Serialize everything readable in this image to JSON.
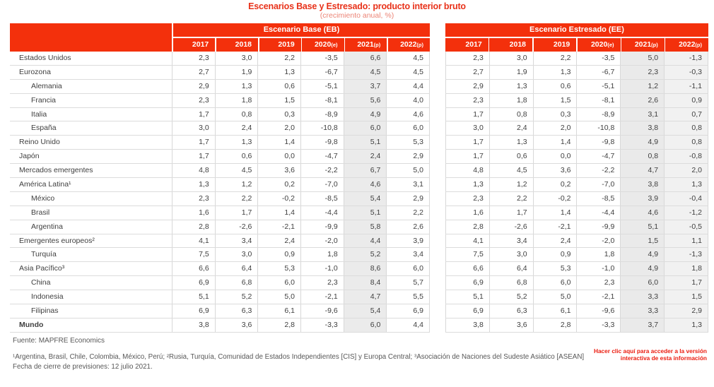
{
  "chart_data": {
    "type": "table",
    "title": "Escenarios Base y Estresado: producto interior bruto",
    "subtitle": "(crecimiento anual, %)",
    "column_groups": [
      "Escenario Base (EB)",
      "Escenario Estresado (EE)"
    ],
    "columns": [
      "2017",
      "2018",
      "2019",
      "2020(e)",
      "2021(p)",
      "2022(p)"
    ],
    "rows": [
      {
        "label": "Estados Unidos",
        "indent": false,
        "bold": false,
        "eb": [
          "2,3",
          "3,0",
          "2,2",
          "-3,5",
          "6,6",
          "4,5"
        ],
        "ee": [
          "2,3",
          "3,0",
          "2,2",
          "-3,5",
          "5,0",
          "-1,3"
        ]
      },
      {
        "label": "Eurozona",
        "indent": false,
        "bold": false,
        "eb": [
          "2,7",
          "1,9",
          "1,3",
          "-6,7",
          "4,5",
          "4,5"
        ],
        "ee": [
          "2,7",
          "1,9",
          "1,3",
          "-6,7",
          "2,3",
          "-0,3"
        ]
      },
      {
        "label": "Alemania",
        "indent": true,
        "bold": false,
        "eb": [
          "2,9",
          "1,3",
          "0,6",
          "-5,1",
          "3,7",
          "4,4"
        ],
        "ee": [
          "2,9",
          "1,3",
          "0,6",
          "-5,1",
          "1,2",
          "-1,1"
        ]
      },
      {
        "label": "Francia",
        "indent": true,
        "bold": false,
        "eb": [
          "2,3",
          "1,8",
          "1,5",
          "-8,1",
          "5,6",
          "4,0"
        ],
        "ee": [
          "2,3",
          "1,8",
          "1,5",
          "-8,1",
          "2,6",
          "0,9"
        ]
      },
      {
        "label": "Italia",
        "indent": true,
        "bold": false,
        "eb": [
          "1,7",
          "0,8",
          "0,3",
          "-8,9",
          "4,9",
          "4,6"
        ],
        "ee": [
          "1,7",
          "0,8",
          "0,3",
          "-8,9",
          "3,1",
          "0,7"
        ]
      },
      {
        "label": "España",
        "indent": true,
        "bold": false,
        "eb": [
          "3,0",
          "2,4",
          "2,0",
          "-10,8",
          "6,0",
          "6,0"
        ],
        "ee": [
          "3,0",
          "2,4",
          "2,0",
          "-10,8",
          "3,8",
          "0,8"
        ]
      },
      {
        "label": "Reino Unido",
        "indent": false,
        "bold": false,
        "eb": [
          "1,7",
          "1,3",
          "1,4",
          "-9,8",
          "5,1",
          "5,3"
        ],
        "ee": [
          "1,7",
          "1,3",
          "1,4",
          "-9,8",
          "4,9",
          "0,8"
        ]
      },
      {
        "label": "Japón",
        "indent": false,
        "bold": false,
        "eb": [
          "1,7",
          "0,6",
          "0,0",
          "-4,7",
          "2,4",
          "2,9"
        ],
        "ee": [
          "1,7",
          "0,6",
          "0,0",
          "-4,7",
          "0,8",
          "-0,8"
        ]
      },
      {
        "label": "Mercados emergentes",
        "indent": false,
        "bold": false,
        "eb": [
          "4,8",
          "4,5",
          "3,6",
          "-2,2",
          "6,7",
          "5,0"
        ],
        "ee": [
          "4,8",
          "4,5",
          "3,6",
          "-2,2",
          "4,7",
          "2,0"
        ]
      },
      {
        "label": "América Latina¹",
        "indent": false,
        "bold": false,
        "eb": [
          "1,3",
          "1,2",
          "0,2",
          "-7,0",
          "4,6",
          "3,1"
        ],
        "ee": [
          "1,3",
          "1,2",
          "0,2",
          "-7,0",
          "3,8",
          "1,3"
        ]
      },
      {
        "label": "México",
        "indent": true,
        "bold": false,
        "eb": [
          "2,3",
          "2,2",
          "-0,2",
          "-8,5",
          "5,4",
          "2,9"
        ],
        "ee": [
          "2,3",
          "2,2",
          "-0,2",
          "-8,5",
          "3,9",
          "-0,4"
        ]
      },
      {
        "label": "Brasil",
        "indent": true,
        "bold": false,
        "eb": [
          "1,6",
          "1,7",
          "1,4",
          "-4,4",
          "5,1",
          "2,2"
        ],
        "ee": [
          "1,6",
          "1,7",
          "1,4",
          "-4,4",
          "4,6",
          "-1,2"
        ]
      },
      {
        "label": "Argentina",
        "indent": true,
        "bold": false,
        "eb": [
          "2,8",
          "-2,6",
          "-2,1",
          "-9,9",
          "5,8",
          "2,6"
        ],
        "ee": [
          "2,8",
          "-2,6",
          "-2,1",
          "-9,9",
          "5,1",
          "-0,5"
        ]
      },
      {
        "label": "Emergentes europeos²",
        "indent": false,
        "bold": false,
        "eb": [
          "4,1",
          "3,4",
          "2,4",
          "-2,0",
          "4,4",
          "3,9"
        ],
        "ee": [
          "4,1",
          "3,4",
          "2,4",
          "-2,0",
          "1,5",
          "1,1"
        ]
      },
      {
        "label": "Turquía",
        "indent": true,
        "bold": false,
        "eb": [
          "7,5",
          "3,0",
          "0,9",
          "1,8",
          "5,2",
          "3,4"
        ],
        "ee": [
          "7,5",
          "3,0",
          "0,9",
          "1,8",
          "4,9",
          "-1,3"
        ]
      },
      {
        "label": "Asia Pacífico³",
        "indent": false,
        "bold": false,
        "eb": [
          "6,6",
          "6,4",
          "5,3",
          "-1,0",
          "8,6",
          "6,0"
        ],
        "ee": [
          "6,6",
          "6,4",
          "5,3",
          "-1,0",
          "4,9",
          "1,8"
        ]
      },
      {
        "label": "China",
        "indent": true,
        "bold": false,
        "eb": [
          "6,9",
          "6,8",
          "6,0",
          "2,3",
          "8,4",
          "5,7"
        ],
        "ee": [
          "6,9",
          "6,8",
          "6,0",
          "2,3",
          "6,0",
          "1,7"
        ]
      },
      {
        "label": "Indonesia",
        "indent": true,
        "bold": false,
        "eb": [
          "5,1",
          "5,2",
          "5,0",
          "-2,1",
          "4,7",
          "5,5"
        ],
        "ee": [
          "5,1",
          "5,2",
          "5,0",
          "-2,1",
          "3,3",
          "1,5"
        ]
      },
      {
        "label": "Filipinas",
        "indent": true,
        "bold": false,
        "eb": [
          "6,9",
          "6,3",
          "6,1",
          "-9,6",
          "5,4",
          "6,9"
        ],
        "ee": [
          "6,9",
          "6,3",
          "6,1",
          "-9,6",
          "3,3",
          "2,9"
        ]
      },
      {
        "label": "Mundo",
        "indent": false,
        "bold": true,
        "eb": [
          "3,8",
          "3,6",
          "2,8",
          "-3,3",
          "6,0",
          "4,4"
        ],
        "ee": [
          "3,8",
          "3,6",
          "2,8",
          "-3,3",
          "3,7",
          "1,3"
        ]
      }
    ],
    "layout": {
      "shaded_columns_base": [
        "2021(p)"
      ],
      "shaded_columns_stressed": [
        "2021(p)",
        "2022(p)"
      ]
    }
  },
  "footer": {
    "source": "Fuente: MAPFRE Economics",
    "footnote": "¹Argentina, Brasil, Chile, Colombia, México, Perú; ²Rusia, Turquía, Comunidad de Estados Independientes [CIS] y Europa Central; ³Asociación de Naciones del Sudeste Asiático [ASEAN]",
    "closing_date": "Fecha de cierre de previsiones: 12 julio 2021.",
    "interactive_link": "Hacer clic aquí para acceder a la versión interactiva de esta información"
  },
  "colors": {
    "brand_red": "#F3300C",
    "title_red": "#E8321A",
    "subtitle_red": "#EC8476",
    "link_red": "#EB1D10",
    "text": "#3F3F3F",
    "muted_text": "#575757",
    "shade": "#EBEBEB",
    "border": "#DCDCDC"
  }
}
